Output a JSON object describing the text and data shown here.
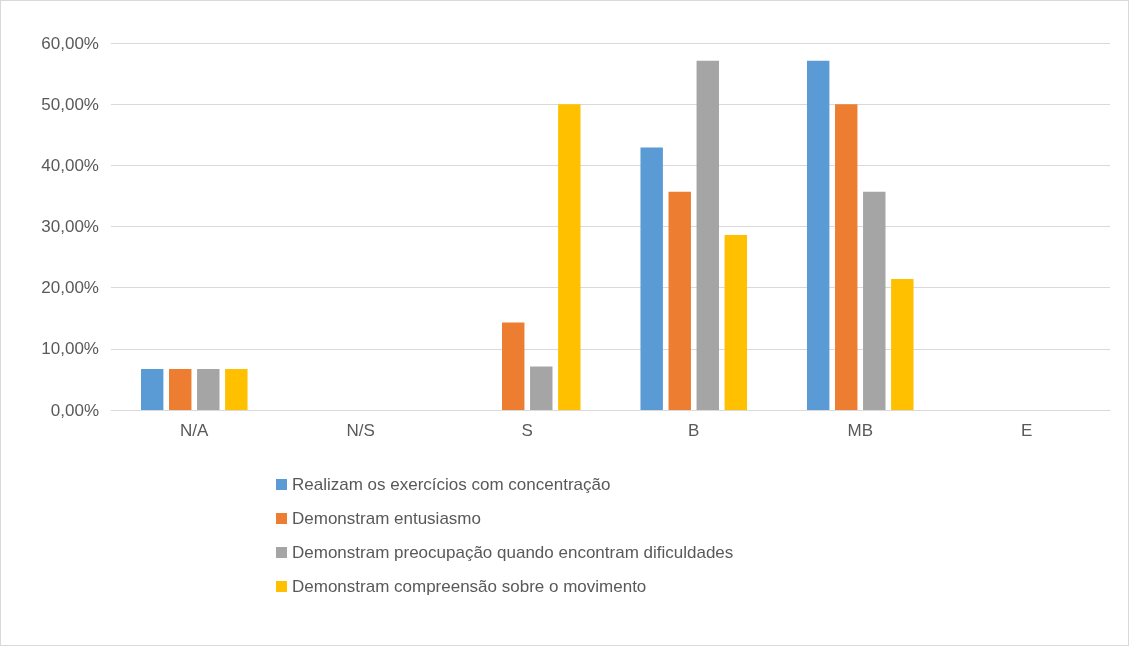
{
  "chart_data": {
    "type": "bar",
    "categories": [
      "N/A",
      "N/S",
      "S",
      "B",
      "MB",
      "E"
    ],
    "series": [
      {
        "name": "Realizam os exercícios com concentração",
        "color": "#5b9bd5",
        "values": [
          6.7,
          0,
          0,
          42.9,
          57.1,
          0
        ]
      },
      {
        "name": "Demonstram entusiasmo",
        "color": "#ed7d31",
        "values": [
          6.7,
          0,
          14.3,
          35.7,
          50,
          0
        ]
      },
      {
        "name": "Demonstram preocupação quando encontram dificuldades",
        "color": "#a5a5a5",
        "values": [
          6.7,
          0,
          7.1,
          57.1,
          35.7,
          0
        ]
      },
      {
        "name": "Demonstram compreensão sobre o movimento",
        "color": "#ffc000",
        "values": [
          6.7,
          0,
          50,
          28.6,
          21.4,
          0
        ]
      }
    ],
    "ylim": [
      0,
      60
    ],
    "yticks": [
      {
        "value": 0,
        "label": "0,00%"
      },
      {
        "value": 10,
        "label": "10,00%"
      },
      {
        "value": 20,
        "label": "20,00%"
      },
      {
        "value": 30,
        "label": "30,00%"
      },
      {
        "value": 40,
        "label": "40,00%"
      },
      {
        "value": 50,
        "label": "50,00%"
      },
      {
        "value": 60,
        "label": "60,00%"
      }
    ],
    "grid": "y",
    "legend": "bottom"
  }
}
